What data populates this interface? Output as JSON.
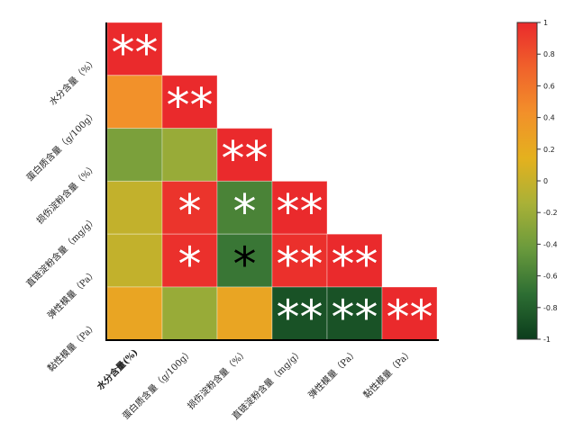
{
  "chart_data": {
    "type": "heatmap",
    "layout": "lower-triangle",
    "labels": [
      "水分含量（%）",
      "蛋白质含量（g/100g）",
      "损伤淀粉含量（%）",
      "直链淀粉含量（mg/g）",
      "弹性模量（Pa）",
      "黏性模量（Pa）"
    ],
    "x_labels": [
      "水分含量(%)",
      "蛋白质含量（g/100g）",
      "损伤淀粉含量（%）",
      "直链淀粉含量（mg/g）",
      "弹性模量（Pa）",
      "黏性模量（Pa）"
    ],
    "matrix": [
      [
        1.0,
        null,
        null,
        null,
        null,
        null
      ],
      [
        0.42,
        1.0,
        null,
        null,
        null,
        null
      ],
      [
        -0.35,
        -0.22,
        1.0,
        null,
        null,
        null
      ],
      [
        -0.02,
        0.95,
        -0.58,
        1.0,
        null,
        null
      ],
      [
        -0.02,
        0.97,
        -0.66,
        0.97,
        1.0,
        null
      ],
      [
        0.25,
        -0.22,
        0.25,
        -0.88,
        -0.88,
        1.0
      ]
    ],
    "significance": [
      [
        "**",
        "",
        "",
        "",
        "",
        ""
      ],
      [
        "",
        "**",
        "",
        "",
        "",
        ""
      ],
      [
        "",
        "",
        "**",
        "",
        "",
        ""
      ],
      [
        "",
        "*",
        "*",
        "**",
        "",
        ""
      ],
      [
        "",
        "*",
        "*",
        "**",
        "**",
        ""
      ],
      [
        "",
        "",
        "",
        "**",
        "**",
        "**"
      ]
    ],
    "colorbar": {
      "ticks": [
        "1",
        "0.8",
        "0.6",
        "0.4",
        "0.2",
        "0",
        "-0.2",
        "-0.4",
        "-0.6",
        "-0.8",
        "-1"
      ],
      "range": [
        -1,
        1
      ],
      "colors": [
        "#0b3d1c",
        "#2d6e33",
        "#6a9a3c",
        "#a9b137",
        "#e4b11e",
        "#f2902a",
        "#f0622b",
        "#ea2a2c"
      ]
    },
    "legend": "right"
  }
}
